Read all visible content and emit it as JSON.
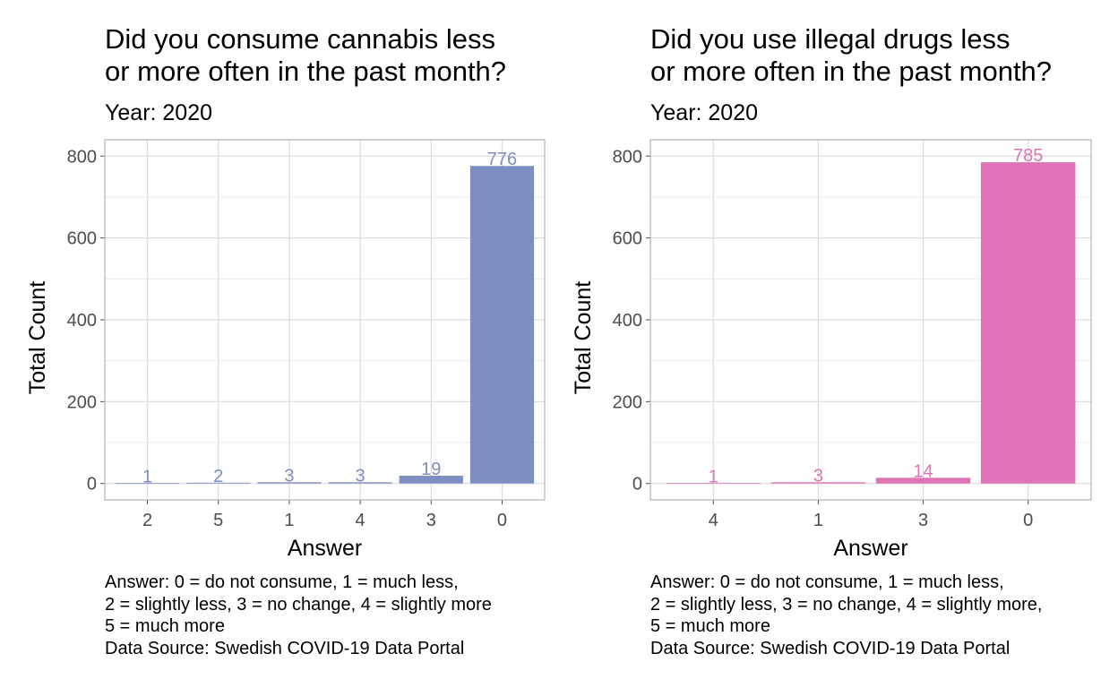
{
  "panels": [
    {
      "title_lines": [
        "Did you consume cannabis less",
        "or more often in the past month?"
      ],
      "subtitle": "Year: 2020",
      "caption_lines": [
        "Answer: 0 = do not consume, 1 = much less,",
        "2 = slightly less, 3 = no change, 4 = slightly more",
        "5 = much more",
        "Data Source: Swedish COVID-19 Data Portal"
      ]
    },
    {
      "title_lines": [
        "Did you use illegal drugs less",
        "or more often in the past month?"
      ],
      "subtitle": "Year: 2020",
      "caption_lines": [
        "Answer: 0 = do not consume, 1 = much less,",
        "2 = slightly less, 3 = no change, 4 = slightly more,",
        "5 = much more",
        "Data Source: Swedish COVID-19 Data Portal"
      ]
    }
  ],
  "chart_data": [
    {
      "type": "bar",
      "title": "Did you consume cannabis less or more often in the past month?",
      "subtitle": "Year: 2020",
      "xlabel": "Answer",
      "ylabel": "Total Count",
      "categories": [
        "2",
        "5",
        "1",
        "4",
        "3",
        "0"
      ],
      "values": [
        1,
        2,
        3,
        3,
        19,
        776
      ],
      "ylim": [
        0,
        800
      ],
      "yticks": [
        0,
        200,
        400,
        600,
        800
      ],
      "bar_color": "#7d8fc2",
      "grid": true,
      "data_labels": true
    },
    {
      "type": "bar",
      "title": "Did you use illegal drugs less or more often in the past month?",
      "subtitle": "Year: 2020",
      "xlabel": "Answer",
      "ylabel": "Total Count",
      "categories": [
        "4",
        "1",
        "3",
        "0"
      ],
      "values": [
        1,
        3,
        14,
        785
      ],
      "ylim": [
        0,
        800
      ],
      "yticks": [
        0,
        200,
        400,
        600,
        800
      ],
      "bar_color": "#df73b6",
      "grid": true,
      "data_labels": true
    }
  ]
}
